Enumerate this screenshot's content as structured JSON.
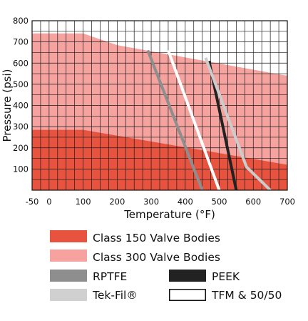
{
  "chart_data": {
    "type": "area",
    "xlabel": "Temperature (°F)",
    "ylabel": "Pressure (psi)",
    "xlim": [
      -50,
      700
    ],
    "ylim": [
      0,
      800
    ],
    "x_ticks": [
      -50,
      0,
      100,
      200,
      300,
      400,
      500,
      600,
      700
    ],
    "y_ticks": [
      100,
      200,
      300,
      400,
      500,
      600,
      700,
      800
    ],
    "grid": true,
    "legend_position": "bottom",
    "areas": [
      {
        "name": "Class 150 Valve Bodies",
        "color": "#e8533f",
        "points": [
          [
            -50,
            285
          ],
          [
            100,
            285
          ],
          [
            700,
            120
          ]
        ]
      },
      {
        "name": "Class 300 Valve Bodies",
        "color": "#f6a3a0",
        "points": [
          [
            -50,
            740
          ],
          [
            100,
            740
          ],
          [
            200,
            685
          ],
          [
            700,
            540
          ]
        ]
      }
    ],
    "series": [
      {
        "name": "RPTFE",
        "color": "#8e8e8e",
        "points": [
          [
            290,
            660
          ],
          [
            450,
            0
          ]
        ]
      },
      {
        "name": "PEEK",
        "color": "#222222",
        "points": [
          [
            470,
            610
          ],
          [
            550,
            0
          ]
        ]
      },
      {
        "name": "Tek-Fil®",
        "color": "#cccccc",
        "points": [
          [
            460,
            625
          ],
          [
            580,
            110
          ],
          [
            650,
            0
          ]
        ]
      },
      {
        "name": "TFM & 50/50",
        "color": "#ffffff",
        "points": [
          [
            350,
            660
          ],
          [
            500,
            0
          ]
        ]
      }
    ],
    "legend": [
      {
        "label": "Class 150 Valve Bodies",
        "kind": "swatch",
        "color": "#e8533f"
      },
      {
        "label": "Class 300 Valve Bodies",
        "kind": "swatch",
        "color": "#f6a3a0"
      },
      {
        "label": "RPTFE",
        "kind": "swatch",
        "color": "#8e8e8e"
      },
      {
        "label": "PEEK",
        "kind": "swatch",
        "color": "#222222"
      },
      {
        "label": "Tek-Fil®",
        "kind": "swatch",
        "color": "#d0d0d0"
      },
      {
        "label": "TFM & 50/50",
        "kind": "outline",
        "color": "#ffffff"
      }
    ]
  }
}
